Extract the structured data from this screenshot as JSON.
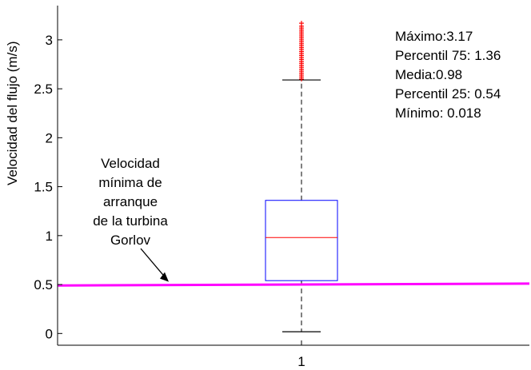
{
  "chart_data": {
    "type": "boxplot",
    "ylabel": "Velocidad del flujo (m/s)",
    "xlabel": "",
    "categories": [
      "1"
    ],
    "ylim": [
      -0.12,
      3.35
    ],
    "yticks": [
      0,
      0.5,
      1,
      1.5,
      2,
      2.5,
      3
    ],
    "ytick_labels": [
      "0",
      "0.5",
      "1",
      "1.5",
      "2",
      "2.5",
      "3"
    ],
    "box": {
      "whisker_low": 0.018,
      "q1": 0.54,
      "median": 0.98,
      "q3": 1.36,
      "whisker_high": 2.59,
      "max": 3.17
    },
    "outliers": [
      2.6,
      2.62,
      2.64,
      2.66,
      2.68,
      2.7,
      2.72,
      2.74,
      2.76,
      2.78,
      2.8,
      2.82,
      2.84,
      2.86,
      2.88,
      2.9,
      2.92,
      2.94,
      2.96,
      2.98,
      3.0,
      3.02,
      3.04,
      3.06,
      3.08,
      3.1,
      3.12,
      3.14,
      3.17
    ],
    "threshold_line": {
      "y_start": 0.49,
      "y_end": 0.51,
      "color": "#ff00ff"
    },
    "colors": {
      "box": "#0000ff",
      "median": "#ff0000",
      "outlier": "#ff0000",
      "whisker": "#000000"
    }
  },
  "stats": {
    "max": "Máximo:3.17",
    "p75": "Percentil 75: 1.36",
    "mean": "Media:0.98",
    "p25": "Percentil 25: 0.54",
    "min": "Mínimo: 0.018"
  },
  "annotation": {
    "lines": [
      "Velocidad",
      "mínima de",
      "arranque",
      "de la turbina",
      "Gorlov"
    ]
  }
}
